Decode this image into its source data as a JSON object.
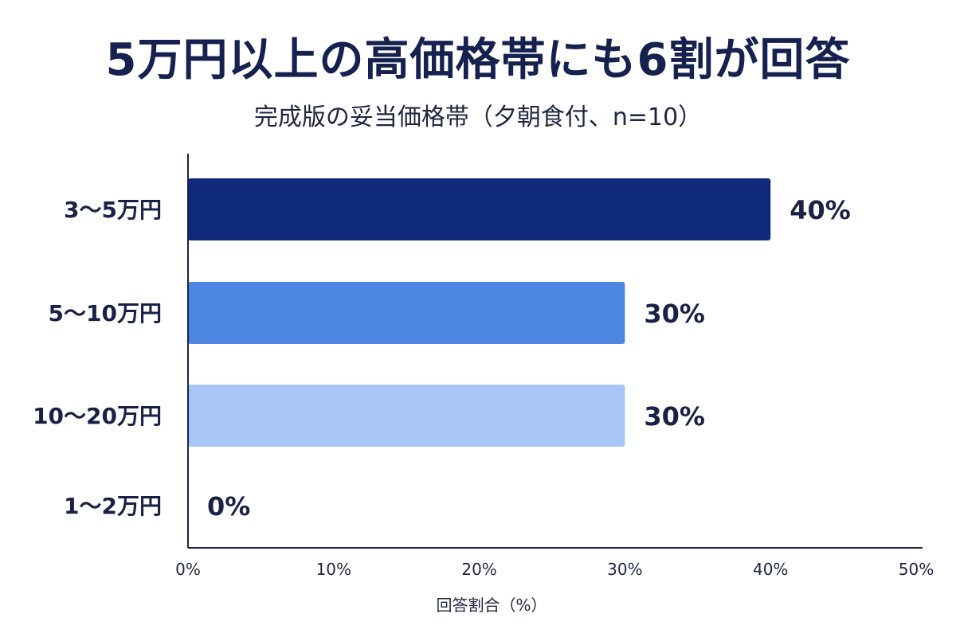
{
  "chart_data": {
    "type": "bar",
    "orientation": "horizontal",
    "title": "5万円以上の高価格帯にも6割が回答",
    "subtitle": "完成版の妥当価格帯（夕朝食付、n=10）",
    "categories": [
      "3〜5万円",
      "5〜10万円",
      "10〜20万円",
      "1〜2万円"
    ],
    "values": [
      40,
      30,
      30,
      0
    ],
    "value_labels": [
      "40%",
      "30%",
      "30%",
      "0%"
    ],
    "bar_colors": [
      "#0f2a7a",
      "#4d86e0",
      "#a7c6f7",
      "#d6e3fb"
    ],
    "xlabel": "回答割合（%）",
    "ylabel": "",
    "xlim": [
      0,
      50
    ],
    "x_ticks": [
      0,
      10,
      20,
      30,
      40,
      50
    ],
    "x_tick_labels": [
      "0%",
      "10%",
      "20%",
      "30%",
      "40%",
      "50%"
    ],
    "grid": false,
    "legend": "none"
  }
}
